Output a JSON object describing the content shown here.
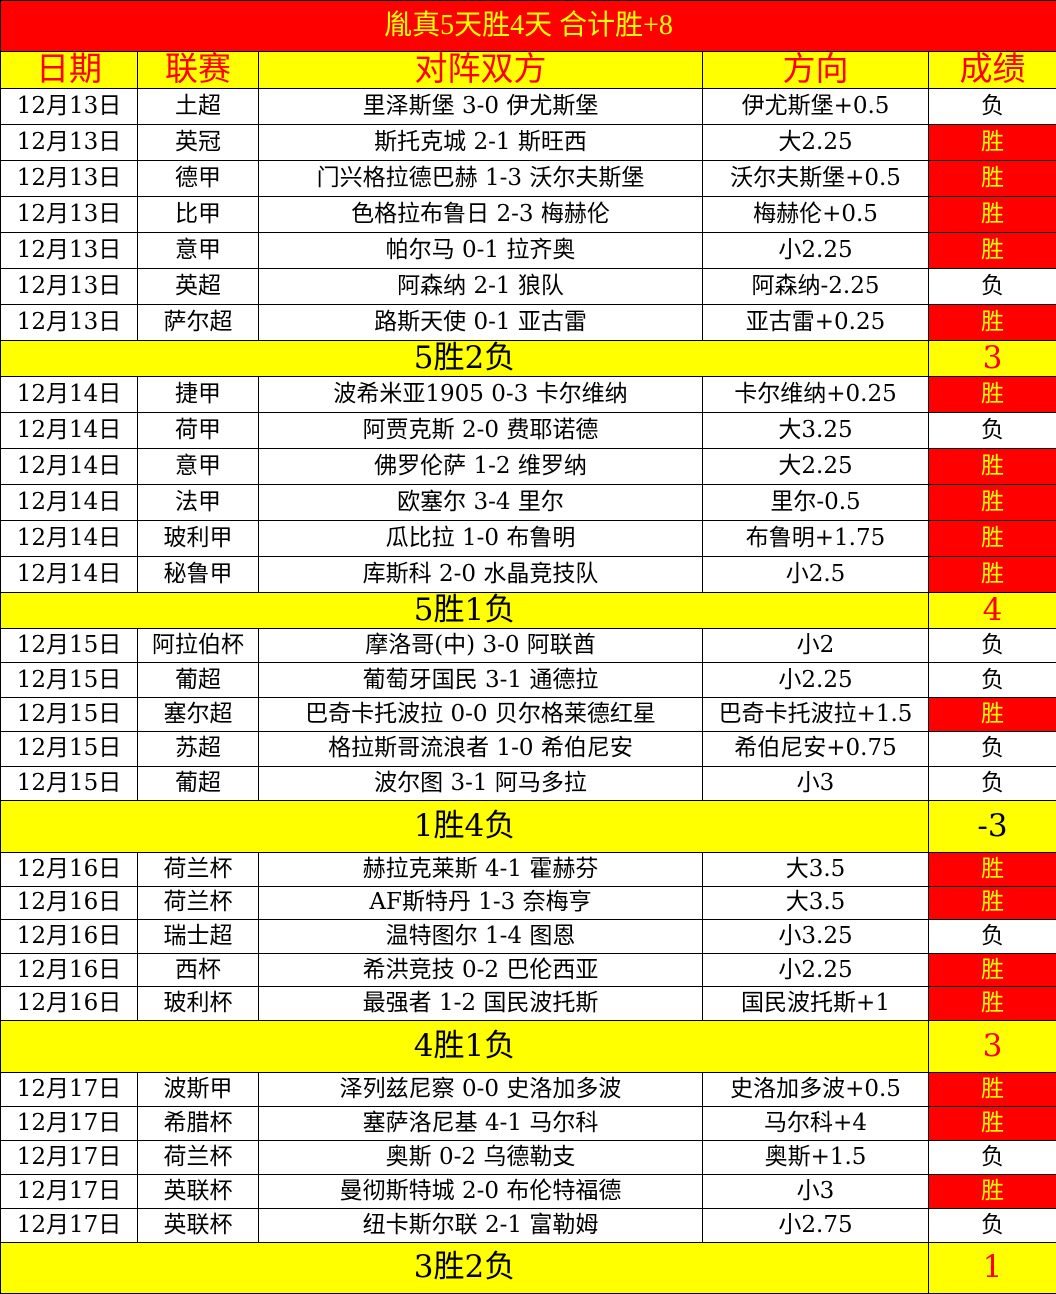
{
  "title": "胤真5天胜4天  合计胜+8",
  "headers": [
    "日期",
    "联赛",
    "对阵双方",
    "方向",
    "成绩"
  ],
  "colors": {
    "title_bg": "#ff0000",
    "title_text": "#ffff00",
    "header_bg": "#ffff00",
    "header_text": "#ff0000",
    "win_bg": "#ff0000",
    "win_text": "#ffff00",
    "summary_bg": "#ffff00"
  },
  "blocks": [
    {
      "rows": [
        [
          "12月13日",
          "土超",
          "里泽斯堡 3-0 伊尤斯堡",
          "伊尤斯堡+0.5",
          "负"
        ],
        [
          "12月13日",
          "英冠",
          "斯托克城 2-1 斯旺西",
          "大2.25",
          "胜"
        ],
        [
          "12月13日",
          "德甲",
          "门兴格拉德巴赫 1-3 沃尔夫斯堡",
          "沃尔夫斯堡+0.5",
          "胜"
        ],
        [
          "12月13日",
          "比甲",
          "色格拉布鲁日 2-3 梅赫伦",
          "梅赫伦+0.5",
          "胜"
        ],
        [
          "12月13日",
          "意甲",
          "帕尔马 0-1 拉齐奥",
          "小2.25",
          "胜"
        ],
        [
          "12月13日",
          "英超",
          "阿森纳 2-1 狼队",
          "阿森纳-2.25",
          "负"
        ],
        [
          "12月13日",
          "萨尔超",
          "路斯天使 0-1 亚古雷",
          "亚古雷+0.25",
          "胜"
        ]
      ],
      "summary": "5胜2负",
      "score": "3"
    },
    {
      "rows": [
        [
          "12月14日",
          "捷甲",
          "波希米亚1905 0-3 卡尔维纳",
          "卡尔维纳+0.25",
          "胜"
        ],
        [
          "12月14日",
          "荷甲",
          "阿贾克斯 2-0 费耶诺德",
          "大3.25",
          "负"
        ],
        [
          "12月14日",
          "意甲",
          "佛罗伦萨 1-2 维罗纳",
          "大2.25",
          "胜"
        ],
        [
          "12月14日",
          "法甲",
          "欧塞尔 3-4 里尔",
          "里尔-0.5",
          "胜"
        ],
        [
          "12月14日",
          "玻利甲",
          "瓜比拉 1-0 布鲁明",
          "布鲁明+1.75",
          "胜"
        ],
        [
          "12月14日",
          "秘鲁甲",
          "库斯科 2-0 水晶竞技队",
          "小2.5",
          "胜"
        ]
      ],
      "summary": "5胜1负",
      "score": "4"
    },
    {
      "rows": [
        [
          "12月15日",
          "阿拉伯杯",
          "摩洛哥(中) 3-0 阿联酋",
          "小2",
          "负"
        ],
        [
          "12月15日",
          "葡超",
          "葡萄牙国民 3-1 通德拉",
          "小2.25",
          "负"
        ],
        [
          "12月15日",
          "塞尔超",
          "巴奇卡托波拉 0-0 贝尔格莱德红星",
          "巴奇卡托波拉+1.5",
          "胜"
        ],
        [
          "12月15日",
          "苏超",
          "格拉斯哥流浪者 1-0 希伯尼安",
          "希伯尼安+0.75",
          "负"
        ],
        [
          "12月15日",
          "葡超",
          "波尔图 3-1 阿马多拉",
          "小3",
          "负"
        ]
      ],
      "summary": "1胜4负",
      "score": "-3"
    },
    {
      "rows": [
        [
          "12月16日",
          "荷兰杯",
          "赫拉克莱斯 4-1 霍赫芬",
          "大3.5",
          "胜"
        ],
        [
          "12月16日",
          "荷兰杯",
          "AF斯特丹 1-3 奈梅亨",
          "大3.5",
          "胜"
        ],
        [
          "12月16日",
          "瑞士超",
          "温特图尔 1-4 图恩",
          "小3.25",
          "负"
        ],
        [
          "12月16日",
          "西杯",
          "希洪竞技 0-2 巴伦西亚",
          "小2.25",
          "胜"
        ],
        [
          "12月16日",
          "玻利杯",
          "最强者 1-2 国民波托斯",
          "国民波托斯+1",
          "胜"
        ]
      ],
      "summary": "4胜1负",
      "score": "3"
    },
    {
      "rows": [
        [
          "12月17日",
          "波斯甲",
          "泽列兹尼察 0-0 史洛加多波",
          "史洛加多波+0.5",
          "胜"
        ],
        [
          "12月17日",
          "希腊杯",
          "塞萨洛尼基 4-1 马尔科",
          "马尔科+4",
          "胜"
        ],
        [
          "12月17日",
          "荷兰杯",
          "奥斯 0-2 乌德勒支",
          "奥斯+1.5",
          "负"
        ],
        [
          "12月17日",
          "英联杯",
          "曼彻斯特城 2-0 布伦特福德",
          "小3",
          "胜"
        ],
        [
          "12月17日",
          "英联杯",
          "纽卡斯尔联 2-1 富勒姆",
          "小2.75",
          "负"
        ]
      ],
      "summary": "3胜2负",
      "score": "1"
    }
  ]
}
